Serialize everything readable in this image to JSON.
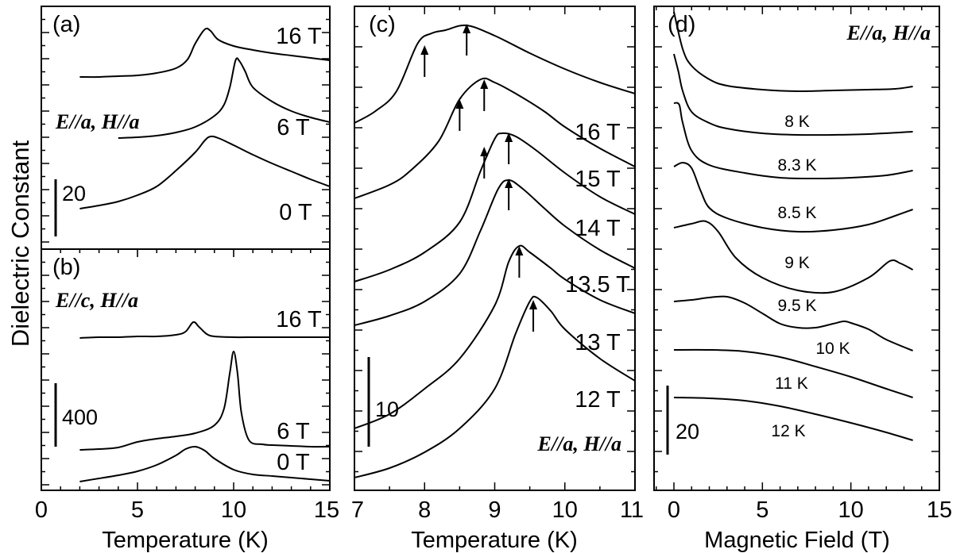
{
  "figure": {
    "ylabel": "Dielectric Constant"
  },
  "chart_data": [
    {
      "id": "a",
      "type": "line",
      "panel_label": "(a)",
      "xlim": [
        0,
        15
      ],
      "xlabel": "",
      "annotation": "E//a, H//a",
      "scale_bar": "20",
      "series": [
        {
          "name": "0 T",
          "points": [
            [
              2,
              263
            ],
            [
              3,
              259
            ],
            [
              4,
              254
            ],
            [
              5,
              246
            ],
            [
              6,
              235
            ],
            [
              7,
              215
            ],
            [
              8,
              192
            ],
            [
              8.5,
              177
            ],
            [
              8.8,
              172
            ],
            [
              9.2,
              174
            ],
            [
              10,
              183
            ],
            [
              11,
              195
            ],
            [
              12,
              206
            ],
            [
              13,
              216
            ],
            [
              14,
              226
            ],
            [
              15,
              235
            ]
          ]
        },
        {
          "name": "6 T",
          "points": [
            [
              4,
              174
            ],
            [
              5,
              173
            ],
            [
              6,
              171
            ],
            [
              7,
              167
            ],
            [
              8,
              160
            ],
            [
              9,
              146
            ],
            [
              9.5,
              132
            ],
            [
              9.8,
              110
            ],
            [
              10.1,
              76
            ],
            [
              10.3,
              77
            ],
            [
              10.6,
              90
            ],
            [
              11,
              110
            ],
            [
              12,
              128
            ],
            [
              13,
              140
            ],
            [
              14,
              148
            ],
            [
              15,
              154
            ]
          ]
        },
        {
          "name": "16 T",
          "points": [
            [
              2,
              97
            ],
            [
              3,
              97
            ],
            [
              4,
              96
            ],
            [
              5,
              95
            ],
            [
              6,
              92
            ],
            [
              7,
              86
            ],
            [
              7.6,
              75
            ],
            [
              8,
              55
            ],
            [
              8.5,
              37
            ],
            [
              8.8,
              39
            ],
            [
              9.2,
              50
            ],
            [
              10,
              58
            ],
            [
              11,
              63
            ],
            [
              12,
              67
            ],
            [
              13,
              70
            ],
            [
              14,
              73
            ],
            [
              15,
              76
            ]
          ]
        }
      ]
    },
    {
      "id": "b",
      "type": "line",
      "panel_label": "(b)",
      "xlim": [
        0,
        15
      ],
      "xticks": [
        0,
        5,
        10,
        15
      ],
      "xlabel": "Temperature (K)",
      "annotation": "E//c, H//a",
      "scale_bar": "400",
      "series": [
        {
          "name": "0 T",
          "points": [
            [
              2,
              607
            ],
            [
              3,
              603
            ],
            [
              4,
              599
            ],
            [
              5,
              594
            ],
            [
              6,
              586
            ],
            [
              7,
              574
            ],
            [
              7.5,
              566
            ],
            [
              8,
              563
            ],
            [
              8.5,
              568
            ],
            [
              9,
              578
            ],
            [
              10,
              592
            ],
            [
              11,
              598
            ],
            [
              12,
              600
            ],
            [
              13,
              602
            ],
            [
              14,
              604
            ],
            [
              15,
              606
            ]
          ]
        },
        {
          "name": "6 T",
          "points": [
            [
              2,
              567
            ],
            [
              3,
              566
            ],
            [
              4,
              564
            ],
            [
              5,
              557
            ],
            [
              6,
              553
            ],
            [
              7,
              550
            ],
            [
              8,
              546
            ],
            [
              9,
              536
            ],
            [
              9.5,
              515
            ],
            [
              9.8,
              470
            ],
            [
              10,
              443
            ],
            [
              10.2,
              470
            ],
            [
              10.4,
              520
            ],
            [
              10.8,
              555
            ],
            [
              11.5,
              560
            ],
            [
              12,
              561
            ],
            [
              13,
              562
            ],
            [
              14,
              563
            ],
            [
              15,
              563
            ]
          ]
        },
        {
          "name": "16 T",
          "points": [
            [
              2,
              426
            ],
            [
              3,
              425
            ],
            [
              4,
              425
            ],
            [
              5,
              424
            ],
            [
              6,
              424
            ],
            [
              7,
              422
            ],
            [
              7.5,
              418
            ],
            [
              7.9,
              406
            ],
            [
              8.2,
              412
            ],
            [
              8.6,
              421
            ],
            [
              9,
              424
            ],
            [
              10,
              425
            ],
            [
              11,
              425
            ],
            [
              12,
              425
            ],
            [
              13,
              425
            ],
            [
              14,
              425
            ],
            [
              15,
              425
            ]
          ]
        }
      ]
    },
    {
      "id": "c",
      "type": "line",
      "panel_label": "(c)",
      "xlim": [
        7,
        11
      ],
      "xticks": [
        7,
        8,
        9,
        10,
        11
      ],
      "xlabel": "Temperature (K)",
      "annotation": "E//a, H//a",
      "scale_bar": "10",
      "arrows_x_K": [
        8.0,
        8.6,
        8.5,
        8.85,
        8.85,
        9.2,
        9.2,
        9.35,
        9.55
      ],
      "series": [
        {
          "name": "12 T",
          "points": [
            [
              7,
              602
            ],
            [
              7.5,
              590
            ],
            [
              8,
              570
            ],
            [
              8.5,
              540
            ],
            [
              9,
              490
            ],
            [
              9.3,
              420
            ],
            [
              9.5,
              380
            ],
            [
              9.6,
              375
            ],
            [
              9.8,
              392
            ],
            [
              10,
              415
            ],
            [
              10.5,
              452
            ],
            [
              11,
              480
            ]
          ]
        },
        {
          "name": "13 T",
          "points": [
            [
              7,
              540
            ],
            [
              7.5,
              522
            ],
            [
              8,
              490
            ],
            [
              8.5,
              452
            ],
            [
              9,
              385
            ],
            [
              9.2,
              330
            ],
            [
              9.35,
              310
            ],
            [
              9.5,
              318
            ],
            [
              9.8,
              338
            ],
            [
              10,
              352
            ],
            [
              10.5,
              378
            ],
            [
              11,
              395
            ]
          ]
        },
        {
          "name": "13.5 T",
          "points": [
            [
              7,
              410
            ],
            [
              7.5,
              398
            ],
            [
              8,
              380
            ],
            [
              8.5,
              345
            ],
            [
              8.8,
              290
            ],
            [
              9.05,
              238
            ],
            [
              9.2,
              227
            ],
            [
              9.4,
              238
            ],
            [
              9.7,
              262
            ],
            [
              10,
              285
            ],
            [
              10.5,
              315
            ],
            [
              11,
              338
            ]
          ]
        },
        {
          "name": "14 T",
          "points": [
            [
              7,
              355
            ],
            [
              7.5,
              340
            ],
            [
              8,
              318
            ],
            [
              8.5,
              280
            ],
            [
              8.8,
              215
            ],
            [
              9,
              175
            ],
            [
              9.1,
              168
            ],
            [
              9.3,
              172
            ],
            [
              9.6,
              190
            ],
            [
              10,
              218
            ],
            [
              10.5,
              248
            ],
            [
              11,
              270
            ]
          ]
        },
        {
          "name": "15 T",
          "points": [
            [
              7,
              250
            ],
            [
              7.5,
              233
            ],
            [
              7.8,
              215
            ],
            [
              8.2,
              178
            ],
            [
              8.5,
              125
            ],
            [
              8.8,
              100
            ],
            [
              9,
              104
            ],
            [
              9.3,
              118
            ],
            [
              9.7,
              140
            ],
            [
              10,
              160
            ],
            [
              10.5,
              187
            ],
            [
              11,
              210
            ]
          ]
        },
        {
          "name": "16 T",
          "points": [
            [
              7,
              155
            ],
            [
              7.3,
              140
            ],
            [
              7.6,
              115
            ],
            [
              7.9,
              55
            ],
            [
              8.1,
              42
            ],
            [
              8.3,
              38
            ],
            [
              8.6,
              32
            ],
            [
              9,
              45
            ],
            [
              9.5,
              67
            ],
            [
              10,
              87
            ],
            [
              10.5,
              104
            ],
            [
              11,
              118
            ]
          ]
        }
      ]
    },
    {
      "id": "d",
      "type": "line",
      "panel_label": "(d)",
      "xlim": [
        -1,
        15
      ],
      "xticks": [
        0,
        5,
        10,
        15
      ],
      "xlabel": "Magnetic Field (T)",
      "annotation": "E//a, H//a",
      "scale_bar": "20",
      "series": [
        {
          "name": "8 K",
          "points": [
            [
              0,
              15
            ],
            [
              0.5,
              62
            ],
            [
              1,
              83
            ],
            [
              2,
              100
            ],
            [
              3,
              108
            ],
            [
              5,
              113
            ],
            [
              7,
              115
            ],
            [
              9,
              114
            ],
            [
              11,
              113
            ],
            [
              12.5,
              112
            ],
            [
              13.5,
              109
            ]
          ]
        },
        {
          "name": "8.3 K",
          "points": [
            [
              0,
              68
            ],
            [
              0.25,
              90
            ],
            [
              0.5,
              115
            ],
            [
              1,
              141
            ],
            [
              2,
              155
            ],
            [
              3,
              162
            ],
            [
              5,
              168
            ],
            [
              7,
              170
            ],
            [
              9,
              170
            ],
            [
              11,
              169
            ],
            [
              13.5,
              166
            ]
          ]
        },
        {
          "name": "8.5 K",
          "points": [
            [
              0,
              130
            ],
            [
              0.3,
              132
            ],
            [
              0.5,
              155
            ],
            [
              1,
              190
            ],
            [
              2,
              208
            ],
            [
              4,
              218
            ],
            [
              6,
              224
            ],
            [
              8,
              225
            ],
            [
              10,
              224
            ],
            [
              12,
              221
            ],
            [
              13.5,
              215
            ]
          ]
        },
        {
          "name": "9 K",
          "points": [
            [
              0,
              210
            ],
            [
              0.5,
              205
            ],
            [
              1,
              212
            ],
            [
              1.5,
              240
            ],
            [
              2,
              262
            ],
            [
              3,
              275
            ],
            [
              5,
              287
            ],
            [
              7,
              292
            ],
            [
              9,
              290
            ],
            [
              11,
              283
            ],
            [
              12.5,
              272
            ],
            [
              13.5,
              264
            ]
          ]
        },
        {
          "name": "9.5 K",
          "points": [
            [
              0,
              287
            ],
            [
              1,
              282
            ],
            [
              1.8,
              279
            ],
            [
              2.5,
              292
            ],
            [
              3.5,
              325
            ],
            [
              5,
              350
            ],
            [
              7,
              366
            ],
            [
              9,
              368
            ],
            [
              11,
              350
            ],
            [
              12.2,
              329
            ],
            [
              12.8,
              332
            ],
            [
              13.5,
              340
            ]
          ]
        },
        {
          "name": "10 K",
          "points": [
            [
              0,
              380
            ],
            [
              1,
              378
            ],
            [
              2,
              375
            ],
            [
              3,
              374
            ],
            [
              4,
              382
            ],
            [
              5,
              395
            ],
            [
              6,
              408
            ],
            [
              7,
              413
            ],
            [
              8,
              413
            ],
            [
              9,
              408
            ],
            [
              9.6,
              405
            ],
            [
              10,
              407
            ],
            [
              11,
              415
            ],
            [
              12,
              428
            ],
            [
              13.5,
              442
            ]
          ]
        },
        {
          "name": "11 K",
          "points": [
            [
              0,
              441
            ],
            [
              2,
              441
            ],
            [
              4,
              443
            ],
            [
              6,
              450
            ],
            [
              8,
              462
            ],
            [
              10,
              475
            ],
            [
              12,
              490
            ],
            [
              13.5,
              501
            ]
          ]
        },
        {
          "name": "12 K",
          "points": [
            [
              0,
              501
            ],
            [
              2,
              502
            ],
            [
              4,
              505
            ],
            [
              6,
              512
            ],
            [
              8,
              522
            ],
            [
              10,
              533
            ],
            [
              12,
              545
            ],
            [
              13.5,
              555
            ]
          ]
        }
      ]
    }
  ]
}
